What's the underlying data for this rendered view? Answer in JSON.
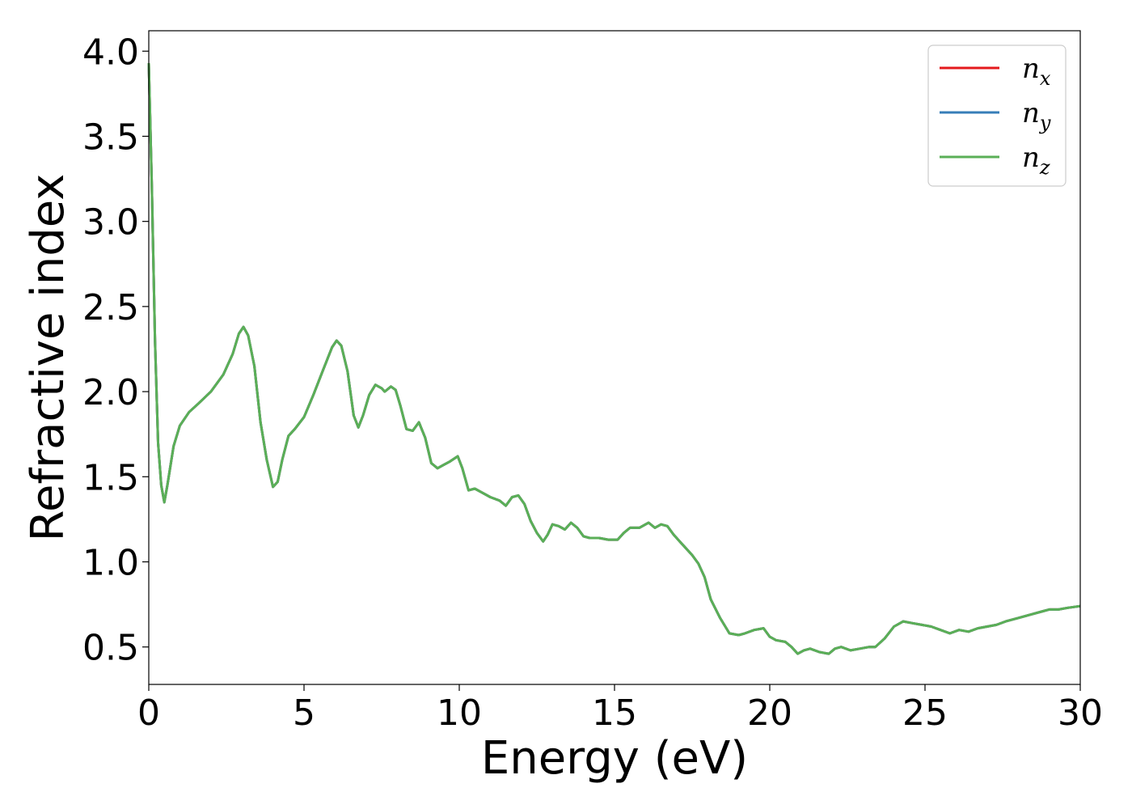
{
  "chart_data": {
    "type": "line",
    "title": "",
    "xlabel": "Energy (eV)",
    "ylabel": "Refractive index",
    "xlim": [
      0,
      30
    ],
    "ylim": [
      0.28,
      4.12
    ],
    "xticks": [
      0,
      5,
      10,
      15,
      20,
      25,
      30
    ],
    "xtick_labels": [
      "0",
      "5",
      "10",
      "15",
      "20",
      "25",
      "30"
    ],
    "yticks": [
      0.5,
      1.0,
      1.5,
      2.0,
      2.5,
      3.0,
      3.5,
      4.0
    ],
    "ytick_labels": [
      "0.5",
      "1.0",
      "1.5",
      "2.0",
      "2.5",
      "3.0",
      "3.5",
      "4.0"
    ],
    "grid": false,
    "legend_position": "top-right",
    "series": [
      {
        "name": "n",
        "subscript": "x",
        "color": "#e41a1c",
        "x": [
          0,
          0.1,
          0.2,
          0.3,
          0.4,
          0.5,
          0.6,
          0.8,
          1.0,
          1.3,
          1.6,
          2.0,
          2.4,
          2.7,
          2.9,
          3.05,
          3.2,
          3.4,
          3.6,
          3.8,
          4.0,
          4.15,
          4.3,
          4.5,
          4.7,
          5.0,
          5.3,
          5.6,
          5.9,
          6.05,
          6.2,
          6.4,
          6.6,
          6.75,
          6.9,
          7.1,
          7.3,
          7.5,
          7.6,
          7.8,
          7.95,
          8.1,
          8.3,
          8.5,
          8.7,
          8.9,
          9.1,
          9.3,
          9.5,
          9.7,
          9.95,
          10.1,
          10.3,
          10.5,
          10.7,
          11.0,
          11.3,
          11.5,
          11.7,
          11.9,
          12.1,
          12.3,
          12.5,
          12.7,
          12.85,
          13.0,
          13.2,
          13.4,
          13.6,
          13.8,
          14.0,
          14.2,
          14.5,
          14.8,
          15.1,
          15.3,
          15.5,
          15.8,
          16.1,
          16.3,
          16.5,
          16.7,
          16.9,
          17.1,
          17.3,
          17.5,
          17.7,
          17.9,
          18.1,
          18.4,
          18.7,
          19.0,
          19.2,
          19.5,
          19.8,
          20.0,
          20.2,
          20.5,
          20.7,
          20.9,
          21.1,
          21.3,
          21.6,
          21.9,
          22.1,
          22.3,
          22.6,
          22.9,
          23.2,
          23.4,
          23.7,
          24.0,
          24.3,
          24.6,
          24.9,
          25.2,
          25.5,
          25.8,
          26.1,
          26.4,
          26.7,
          27.0,
          27.3,
          27.6,
          28.0,
          28.4,
          28.8,
          29.0,
          29.3,
          29.6,
          30.0
        ],
        "y": [
          3.93,
          3.2,
          2.3,
          1.7,
          1.45,
          1.35,
          1.45,
          1.68,
          1.8,
          1.88,
          1.93,
          2.0,
          2.1,
          2.22,
          2.34,
          2.38,
          2.33,
          2.15,
          1.82,
          1.6,
          1.44,
          1.47,
          1.6,
          1.74,
          1.78,
          1.85,
          1.98,
          2.12,
          2.26,
          2.3,
          2.27,
          2.12,
          1.86,
          1.79,
          1.86,
          1.98,
          2.04,
          2.02,
          2.0,
          2.03,
          2.01,
          1.92,
          1.78,
          1.77,
          1.82,
          1.73,
          1.58,
          1.55,
          1.57,
          1.59,
          1.62,
          1.55,
          1.42,
          1.43,
          1.41,
          1.38,
          1.36,
          1.33,
          1.38,
          1.39,
          1.34,
          1.24,
          1.17,
          1.12,
          1.16,
          1.22,
          1.21,
          1.19,
          1.23,
          1.2,
          1.15,
          1.14,
          1.14,
          1.13,
          1.13,
          1.17,
          1.2,
          1.2,
          1.23,
          1.2,
          1.22,
          1.21,
          1.16,
          1.12,
          1.08,
          1.04,
          0.99,
          0.91,
          0.78,
          0.67,
          0.58,
          0.57,
          0.58,
          0.6,
          0.61,
          0.56,
          0.54,
          0.53,
          0.5,
          0.46,
          0.48,
          0.49,
          0.47,
          0.46,
          0.49,
          0.5,
          0.48,
          0.49,
          0.5,
          0.5,
          0.55,
          0.62,
          0.65,
          0.64,
          0.63,
          0.62,
          0.6,
          0.58,
          0.6,
          0.59,
          0.61,
          0.62,
          0.63,
          0.65,
          0.67,
          0.69,
          0.71,
          0.72,
          0.72,
          0.73,
          0.74
        ]
      },
      {
        "name": "n",
        "subscript": "y",
        "color": "#377eb8",
        "x": [
          0,
          0.1,
          0.2,
          0.3,
          0.4,
          0.5,
          0.6,
          0.8,
          1.0,
          1.3,
          1.6,
          2.0,
          2.4,
          2.7,
          2.9,
          3.05,
          3.2,
          3.4,
          3.6,
          3.8,
          4.0,
          4.15,
          4.3,
          4.5,
          4.7,
          5.0,
          5.3,
          5.6,
          5.9,
          6.05,
          6.2,
          6.4,
          6.6,
          6.75,
          6.9,
          7.1,
          7.3,
          7.5,
          7.6,
          7.8,
          7.95,
          8.1,
          8.3,
          8.5,
          8.7,
          8.9,
          9.1,
          9.3,
          9.5,
          9.7,
          9.95,
          10.1,
          10.3,
          10.5,
          10.7,
          11.0,
          11.3,
          11.5,
          11.7,
          11.9,
          12.1,
          12.3,
          12.5,
          12.7,
          12.85,
          13.0,
          13.2,
          13.4,
          13.6,
          13.8,
          14.0,
          14.2,
          14.5,
          14.8,
          15.1,
          15.3,
          15.5,
          15.8,
          16.1,
          16.3,
          16.5,
          16.7,
          16.9,
          17.1,
          17.3,
          17.5,
          17.7,
          17.9,
          18.1,
          18.4,
          18.7,
          19.0,
          19.2,
          19.5,
          19.8,
          20.0,
          20.2,
          20.5,
          20.7,
          20.9,
          21.1,
          21.3,
          21.6,
          21.9,
          22.1,
          22.3,
          22.6,
          22.9,
          23.2,
          23.4,
          23.7,
          24.0,
          24.3,
          24.6,
          24.9,
          25.2,
          25.5,
          25.8,
          26.1,
          26.4,
          26.7,
          27.0,
          27.3,
          27.6,
          28.0,
          28.4,
          28.8,
          29.0,
          29.3,
          29.6,
          30.0
        ],
        "y": [
          3.93,
          3.2,
          2.3,
          1.7,
          1.45,
          1.35,
          1.45,
          1.68,
          1.8,
          1.88,
          1.93,
          2.0,
          2.1,
          2.22,
          2.34,
          2.38,
          2.33,
          2.15,
          1.82,
          1.6,
          1.44,
          1.47,
          1.6,
          1.74,
          1.78,
          1.85,
          1.98,
          2.12,
          2.26,
          2.3,
          2.27,
          2.12,
          1.86,
          1.79,
          1.86,
          1.98,
          2.04,
          2.02,
          2.0,
          2.03,
          2.01,
          1.92,
          1.78,
          1.77,
          1.82,
          1.73,
          1.58,
          1.55,
          1.57,
          1.59,
          1.62,
          1.55,
          1.42,
          1.43,
          1.41,
          1.38,
          1.36,
          1.33,
          1.38,
          1.39,
          1.34,
          1.24,
          1.17,
          1.12,
          1.16,
          1.22,
          1.21,
          1.19,
          1.23,
          1.2,
          1.15,
          1.14,
          1.14,
          1.13,
          1.13,
          1.17,
          1.2,
          1.2,
          1.23,
          1.2,
          1.22,
          1.21,
          1.16,
          1.12,
          1.08,
          1.04,
          0.99,
          0.91,
          0.78,
          0.67,
          0.58,
          0.57,
          0.58,
          0.6,
          0.61,
          0.56,
          0.54,
          0.53,
          0.5,
          0.46,
          0.48,
          0.49,
          0.47,
          0.46,
          0.49,
          0.5,
          0.48,
          0.49,
          0.5,
          0.5,
          0.55,
          0.62,
          0.65,
          0.64,
          0.63,
          0.62,
          0.6,
          0.58,
          0.6,
          0.59,
          0.61,
          0.62,
          0.63,
          0.65,
          0.67,
          0.69,
          0.71,
          0.72,
          0.72,
          0.73,
          0.74
        ]
      },
      {
        "name": "n",
        "subscript": "z",
        "color": "#5aaf57",
        "x": [
          0,
          0.1,
          0.2,
          0.3,
          0.4,
          0.5,
          0.6,
          0.8,
          1.0,
          1.3,
          1.6,
          2.0,
          2.4,
          2.7,
          2.9,
          3.05,
          3.2,
          3.4,
          3.6,
          3.8,
          4.0,
          4.15,
          4.3,
          4.5,
          4.7,
          5.0,
          5.3,
          5.6,
          5.9,
          6.05,
          6.2,
          6.4,
          6.6,
          6.75,
          6.9,
          7.1,
          7.3,
          7.5,
          7.6,
          7.8,
          7.95,
          8.1,
          8.3,
          8.5,
          8.7,
          8.9,
          9.1,
          9.3,
          9.5,
          9.7,
          9.95,
          10.1,
          10.3,
          10.5,
          10.7,
          11.0,
          11.3,
          11.5,
          11.7,
          11.9,
          12.1,
          12.3,
          12.5,
          12.7,
          12.85,
          13.0,
          13.2,
          13.4,
          13.6,
          13.8,
          14.0,
          14.2,
          14.5,
          14.8,
          15.1,
          15.3,
          15.5,
          15.8,
          16.1,
          16.3,
          16.5,
          16.7,
          16.9,
          17.1,
          17.3,
          17.5,
          17.7,
          17.9,
          18.1,
          18.4,
          18.7,
          19.0,
          19.2,
          19.5,
          19.8,
          20.0,
          20.2,
          20.5,
          20.7,
          20.9,
          21.1,
          21.3,
          21.6,
          21.9,
          22.1,
          22.3,
          22.6,
          22.9,
          23.2,
          23.4,
          23.7,
          24.0,
          24.3,
          24.6,
          24.9,
          25.2,
          25.5,
          25.8,
          26.1,
          26.4,
          26.7,
          27.0,
          27.3,
          27.6,
          28.0,
          28.4,
          28.8,
          29.0,
          29.3,
          29.6,
          30.0
        ],
        "y": [
          3.93,
          3.2,
          2.3,
          1.7,
          1.45,
          1.35,
          1.45,
          1.68,
          1.8,
          1.88,
          1.93,
          2.0,
          2.1,
          2.22,
          2.34,
          2.38,
          2.33,
          2.15,
          1.82,
          1.6,
          1.44,
          1.47,
          1.6,
          1.74,
          1.78,
          1.85,
          1.98,
          2.12,
          2.26,
          2.3,
          2.27,
          2.12,
          1.86,
          1.79,
          1.86,
          1.98,
          2.04,
          2.02,
          2.0,
          2.03,
          2.01,
          1.92,
          1.78,
          1.77,
          1.82,
          1.73,
          1.58,
          1.55,
          1.57,
          1.59,
          1.62,
          1.55,
          1.42,
          1.43,
          1.41,
          1.38,
          1.36,
          1.33,
          1.38,
          1.39,
          1.34,
          1.24,
          1.17,
          1.12,
          1.16,
          1.22,
          1.21,
          1.19,
          1.23,
          1.2,
          1.15,
          1.14,
          1.14,
          1.13,
          1.13,
          1.17,
          1.2,
          1.2,
          1.23,
          1.2,
          1.22,
          1.21,
          1.16,
          1.12,
          1.08,
          1.04,
          0.99,
          0.91,
          0.78,
          0.67,
          0.58,
          0.57,
          0.58,
          0.6,
          0.61,
          0.56,
          0.54,
          0.53,
          0.5,
          0.46,
          0.48,
          0.49,
          0.47,
          0.46,
          0.49,
          0.5,
          0.48,
          0.49,
          0.5,
          0.5,
          0.55,
          0.62,
          0.65,
          0.64,
          0.63,
          0.62,
          0.6,
          0.58,
          0.6,
          0.59,
          0.61,
          0.62,
          0.63,
          0.65,
          0.67,
          0.69,
          0.71,
          0.72,
          0.72,
          0.73,
          0.74
        ]
      }
    ]
  }
}
